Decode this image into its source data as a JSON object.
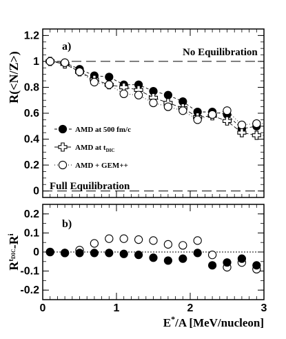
{
  "chart_data": [
    {
      "type": "line",
      "panel_label": "a)",
      "ylabel_main": "R(<N/Z>)",
      "ylim": [
        -0.05,
        1.25
      ],
      "xlim": [
        0,
        3.0
      ],
      "yticks": [
        {
          "v": 0,
          "t": "0"
        },
        {
          "v": 0.2,
          "t": "0.2"
        },
        {
          "v": 0.4,
          "t": "0.4"
        },
        {
          "v": 0.6,
          "t": "0.6"
        },
        {
          "v": 0.8,
          "t": "0.8"
        },
        {
          "v": 1.0,
          "t": "1"
        },
        {
          "v": 1.2,
          "t": "1.2"
        }
      ],
      "annotations": {
        "top": "No Equilibration",
        "bottom": "Full Equilibration"
      },
      "reference_lines": [
        1.0,
        0.0
      ],
      "x": [
        0.1,
        0.3,
        0.5,
        0.7,
        0.9,
        1.1,
        1.3,
        1.5,
        1.7,
        1.9,
        2.1,
        2.3,
        2.5,
        2.7,
        2.9
      ],
      "series": [
        {
          "name": "AMD  at 500 fm/c",
          "marker": "filled-circle",
          "dash": "4,3",
          "values": [
            1.0,
            0.99,
            0.94,
            0.89,
            0.88,
            0.82,
            0.82,
            0.77,
            0.74,
            0.69,
            0.61,
            0.61,
            0.59,
            0.48,
            0.5
          ]
        },
        {
          "name": "AMD at t",
          "name_sub": "DIC",
          "marker": "open-cross",
          "dash": "6,3",
          "values": [
            1.0,
            0.98,
            0.92,
            0.86,
            0.82,
            0.8,
            0.78,
            0.72,
            0.68,
            0.64,
            0.57,
            0.58,
            0.54,
            0.45,
            0.43
          ]
        },
        {
          "name": "AMD + GEM++",
          "marker": "open-circle",
          "dash": "1,3",
          "values": [
            1.0,
            0.99,
            0.92,
            0.84,
            0.82,
            0.75,
            0.74,
            0.68,
            0.65,
            0.62,
            0.55,
            0.59,
            0.62,
            0.51,
            0.52
          ]
        }
      ]
    },
    {
      "type": "scatter",
      "panel_label": "b)",
      "ylabel_main": "R",
      "ylabel_sup": "t",
      "ylabel_supsub": "DIC",
      "ylabel_rest": "-R",
      "ylabel_sup2": "i",
      "ylim": [
        -0.25,
        0.25
      ],
      "xlim": [
        0,
        3.0
      ],
      "yticks": [
        {
          "v": -0.2,
          "t": "-0.2"
        },
        {
          "v": -0.1,
          "t": "-0.1"
        },
        {
          "v": 0,
          "t": "0"
        },
        {
          "v": 0.1,
          "t": "0.1"
        },
        {
          "v": 0.2,
          "t": "0.2"
        }
      ],
      "xticks": [
        {
          "v": 0,
          "t": "0"
        },
        {
          "v": 1,
          "t": "1"
        },
        {
          "v": 2,
          "t": "2"
        },
        {
          "v": 3,
          "t": "3"
        }
      ],
      "xlabel_main": "E",
      "xlabel_sup": "*",
      "xlabel_rest": "/A [MeV/nucleon]",
      "reference_lines": [
        0.0
      ],
      "x": [
        0.1,
        0.3,
        0.5,
        0.7,
        0.9,
        1.1,
        1.3,
        1.5,
        1.7,
        1.9,
        2.1,
        2.3,
        2.5,
        2.7,
        2.9
      ],
      "series": [
        {
          "marker": "filled-circle",
          "values": [
            0.0,
            -0.005,
            -0.005,
            -0.005,
            -0.005,
            -0.01,
            -0.015,
            -0.03,
            -0.045,
            -0.035,
            -0.005,
            -0.07,
            -0.055,
            -0.035,
            -0.07
          ]
        },
        {
          "marker": "open-circle",
          "values": [
            0.0,
            -0.005,
            0.01,
            0.045,
            0.07,
            0.07,
            0.065,
            0.06,
            0.04,
            0.035,
            0.06,
            -0.015,
            -0.08,
            -0.055,
            -0.09
          ]
        }
      ]
    }
  ]
}
